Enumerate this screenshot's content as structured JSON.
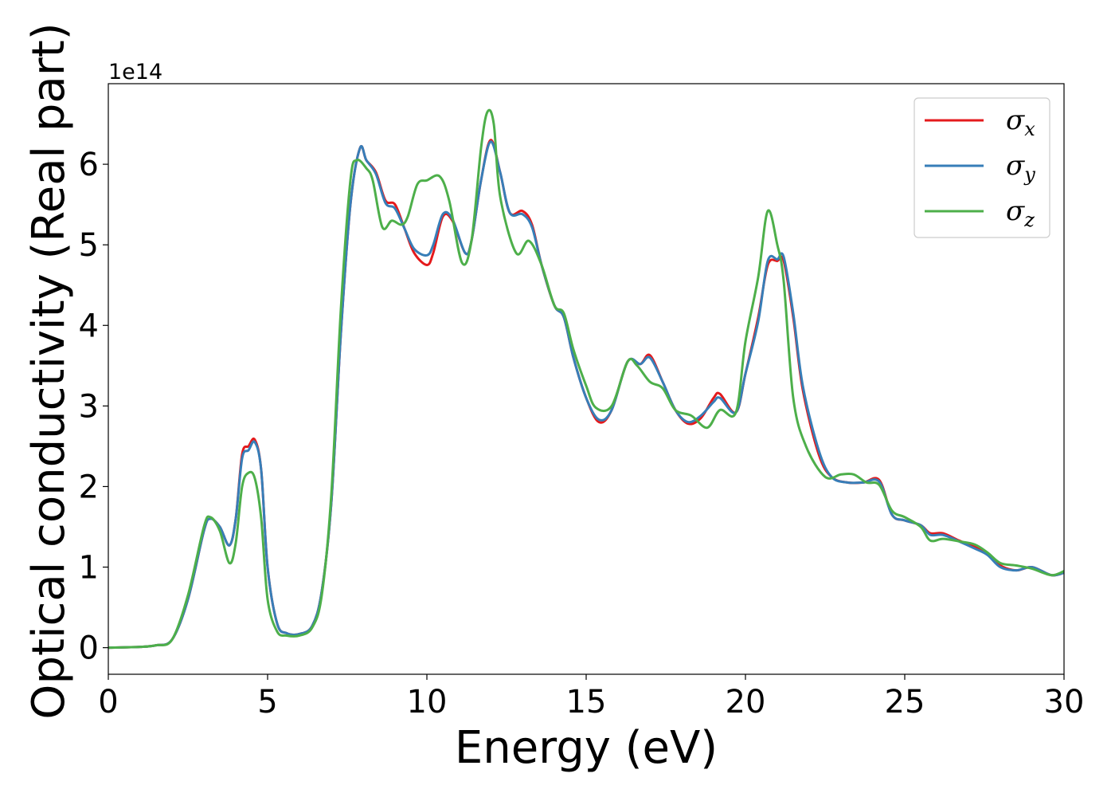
{
  "chart_data": {
    "type": "line",
    "xlabel": "Energy (eV)",
    "ylabel": "Optical conductivity (Real part)",
    "y_offset_label": "1e14",
    "xlim": [
      0,
      30
    ],
    "ylim": [
      -0.33,
      7.0
    ],
    "x_ticks": [
      0,
      5,
      10,
      15,
      20,
      25,
      30
    ],
    "y_ticks": [
      0,
      1,
      2,
      3,
      4,
      5,
      6
    ],
    "grid": false,
    "legend_position": "top-right",
    "series": [
      {
        "name": "σx",
        "symbol": "σ",
        "subscript": "x",
        "color": "#e41a1c",
        "points": [
          [
            0,
            0
          ],
          [
            1,
            0.01
          ],
          [
            1.5,
            0.03
          ],
          [
            2,
            0.1
          ],
          [
            2.5,
            0.6
          ],
          [
            3,
            1.45
          ],
          [
            3.2,
            1.6
          ],
          [
            3.5,
            1.5
          ],
          [
            3.8,
            1.27
          ],
          [
            4,
            1.6
          ],
          [
            4.2,
            2.4
          ],
          [
            4.4,
            2.5
          ],
          [
            4.6,
            2.58
          ],
          [
            4.8,
            2.2
          ],
          [
            5,
            1.0
          ],
          [
            5.3,
            0.3
          ],
          [
            5.6,
            0.18
          ],
          [
            6,
            0.17
          ],
          [
            6.4,
            0.27
          ],
          [
            6.7,
            0.7
          ],
          [
            7,
            1.8
          ],
          [
            7.3,
            3.9
          ],
          [
            7.6,
            5.5
          ],
          [
            7.9,
            6.2
          ],
          [
            8.1,
            6.05
          ],
          [
            8.4,
            5.9
          ],
          [
            8.7,
            5.55
          ],
          [
            9,
            5.5
          ],
          [
            9.3,
            5.2
          ],
          [
            9.6,
            4.9
          ],
          [
            10,
            4.75
          ],
          [
            10.2,
            4.9
          ],
          [
            10.5,
            5.35
          ],
          [
            10.8,
            5.3
          ],
          [
            11.2,
            4.9
          ],
          [
            11.4,
            5.05
          ],
          [
            11.7,
            5.8
          ],
          [
            12,
            6.3
          ],
          [
            12.3,
            5.9
          ],
          [
            12.6,
            5.4
          ],
          [
            13,
            5.42
          ],
          [
            13.3,
            5.25
          ],
          [
            13.6,
            4.75
          ],
          [
            14,
            4.25
          ],
          [
            14.3,
            4.1
          ],
          [
            14.6,
            3.6
          ],
          [
            15,
            3.1
          ],
          [
            15.4,
            2.8
          ],
          [
            15.8,
            2.95
          ],
          [
            16.3,
            3.55
          ],
          [
            16.7,
            3.52
          ],
          [
            17,
            3.63
          ],
          [
            17.4,
            3.3
          ],
          [
            17.8,
            2.95
          ],
          [
            18.2,
            2.78
          ],
          [
            18.6,
            2.85
          ],
          [
            19,
            3.1
          ],
          [
            19.2,
            3.15
          ],
          [
            19.7,
            2.92
          ],
          [
            20,
            3.4
          ],
          [
            20.4,
            4.1
          ],
          [
            20.7,
            4.75
          ],
          [
            21,
            4.8
          ],
          [
            21.2,
            4.8
          ],
          [
            21.5,
            4.1
          ],
          [
            21.8,
            3.2
          ],
          [
            22.3,
            2.4
          ],
          [
            22.7,
            2.12
          ],
          [
            23.2,
            2.05
          ],
          [
            23.7,
            2.05
          ],
          [
            24.2,
            2.08
          ],
          [
            24.6,
            1.65
          ],
          [
            25,
            1.58
          ],
          [
            25.5,
            1.52
          ],
          [
            25.8,
            1.42
          ],
          [
            26.2,
            1.42
          ],
          [
            26.7,
            1.33
          ],
          [
            27.2,
            1.25
          ],
          [
            27.6,
            1.17
          ],
          [
            28,
            1.02
          ],
          [
            28.5,
            0.96
          ],
          [
            29,
            1.0
          ],
          [
            29.6,
            0.9
          ],
          [
            30,
            0.93
          ]
        ]
      },
      {
        "name": "σy",
        "symbol": "σ",
        "subscript": "y",
        "color": "#377eb8",
        "points": [
          [
            0,
            0
          ],
          [
            1,
            0.01
          ],
          [
            1.5,
            0.03
          ],
          [
            2,
            0.1
          ],
          [
            2.5,
            0.6
          ],
          [
            3,
            1.45
          ],
          [
            3.2,
            1.6
          ],
          [
            3.5,
            1.5
          ],
          [
            3.8,
            1.27
          ],
          [
            4,
            1.6
          ],
          [
            4.2,
            2.35
          ],
          [
            4.4,
            2.45
          ],
          [
            4.6,
            2.55
          ],
          [
            4.8,
            2.2
          ],
          [
            5,
            1.0
          ],
          [
            5.3,
            0.3
          ],
          [
            5.6,
            0.18
          ],
          [
            6,
            0.17
          ],
          [
            6.4,
            0.27
          ],
          [
            6.7,
            0.7
          ],
          [
            7,
            1.8
          ],
          [
            7.3,
            3.9
          ],
          [
            7.6,
            5.5
          ],
          [
            7.9,
            6.2
          ],
          [
            8.1,
            6.05
          ],
          [
            8.4,
            5.88
          ],
          [
            8.7,
            5.52
          ],
          [
            9,
            5.45
          ],
          [
            9.3,
            5.2
          ],
          [
            9.6,
            4.95
          ],
          [
            10,
            4.87
          ],
          [
            10.2,
            5.0
          ],
          [
            10.5,
            5.38
          ],
          [
            10.8,
            5.32
          ],
          [
            11.2,
            4.9
          ],
          [
            11.4,
            5.05
          ],
          [
            11.7,
            5.8
          ],
          [
            12,
            6.28
          ],
          [
            12.3,
            5.9
          ],
          [
            12.6,
            5.4
          ],
          [
            13,
            5.38
          ],
          [
            13.3,
            5.22
          ],
          [
            13.6,
            4.75
          ],
          [
            14,
            4.25
          ],
          [
            14.3,
            4.1
          ],
          [
            14.6,
            3.6
          ],
          [
            15,
            3.1
          ],
          [
            15.4,
            2.83
          ],
          [
            15.8,
            2.95
          ],
          [
            16.3,
            3.55
          ],
          [
            16.7,
            3.52
          ],
          [
            17,
            3.6
          ],
          [
            17.4,
            3.3
          ],
          [
            17.8,
            2.95
          ],
          [
            18.2,
            2.8
          ],
          [
            18.6,
            2.88
          ],
          [
            19,
            3.05
          ],
          [
            19.2,
            3.1
          ],
          [
            19.7,
            2.92
          ],
          [
            20,
            3.4
          ],
          [
            20.4,
            4.05
          ],
          [
            20.7,
            4.8
          ],
          [
            21,
            4.82
          ],
          [
            21.2,
            4.85
          ],
          [
            21.5,
            4.15
          ],
          [
            21.8,
            3.25
          ],
          [
            22.3,
            2.45
          ],
          [
            22.7,
            2.12
          ],
          [
            23.2,
            2.05
          ],
          [
            23.7,
            2.05
          ],
          [
            24.2,
            2.06
          ],
          [
            24.6,
            1.65
          ],
          [
            25,
            1.58
          ],
          [
            25.5,
            1.52
          ],
          [
            25.8,
            1.4
          ],
          [
            26.2,
            1.4
          ],
          [
            26.7,
            1.32
          ],
          [
            27.2,
            1.23
          ],
          [
            27.6,
            1.15
          ],
          [
            28,
            1.0
          ],
          [
            28.5,
            0.96
          ],
          [
            29,
            1.0
          ],
          [
            29.6,
            0.9
          ],
          [
            30,
            0.93
          ]
        ]
      },
      {
        "name": "σz",
        "symbol": "σ",
        "subscript": "z",
        "color": "#4daf4a",
        "points": [
          [
            0,
            0
          ],
          [
            1,
            0.01
          ],
          [
            1.5,
            0.03
          ],
          [
            2,
            0.1
          ],
          [
            2.5,
            0.65
          ],
          [
            3,
            1.5
          ],
          [
            3.2,
            1.62
          ],
          [
            3.5,
            1.45
          ],
          [
            3.8,
            1.05
          ],
          [
            4,
            1.3
          ],
          [
            4.2,
            2.0
          ],
          [
            4.4,
            2.17
          ],
          [
            4.6,
            2.1
          ],
          [
            4.8,
            1.6
          ],
          [
            5,
            0.6
          ],
          [
            5.3,
            0.2
          ],
          [
            5.6,
            0.15
          ],
          [
            6,
            0.15
          ],
          [
            6.4,
            0.25
          ],
          [
            6.7,
            0.65
          ],
          [
            7,
            1.9
          ],
          [
            7.3,
            4.2
          ],
          [
            7.6,
            5.8
          ],
          [
            7.8,
            6.05
          ],
          [
            8.1,
            5.95
          ],
          [
            8.3,
            5.8
          ],
          [
            8.6,
            5.22
          ],
          [
            8.9,
            5.3
          ],
          [
            9.2,
            5.25
          ],
          [
            9.4,
            5.35
          ],
          [
            9.7,
            5.75
          ],
          [
            10,
            5.8
          ],
          [
            10.4,
            5.85
          ],
          [
            10.7,
            5.55
          ],
          [
            11.1,
            4.78
          ],
          [
            11.4,
            5.05
          ],
          [
            11.7,
            6.2
          ],
          [
            11.9,
            6.65
          ],
          [
            12.1,
            6.5
          ],
          [
            12.3,
            5.6
          ],
          [
            12.8,
            4.9
          ],
          [
            13.2,
            5.05
          ],
          [
            13.6,
            4.75
          ],
          [
            14,
            4.25
          ],
          [
            14.3,
            4.15
          ],
          [
            14.6,
            3.7
          ],
          [
            15,
            3.25
          ],
          [
            15.3,
            2.98
          ],
          [
            15.8,
            3.0
          ],
          [
            16.3,
            3.55
          ],
          [
            16.6,
            3.5
          ],
          [
            17,
            3.3
          ],
          [
            17.4,
            3.22
          ],
          [
            17.8,
            2.95
          ],
          [
            18.3,
            2.88
          ],
          [
            18.8,
            2.73
          ],
          [
            19.2,
            2.95
          ],
          [
            19.7,
            2.92
          ],
          [
            20,
            3.8
          ],
          [
            20.4,
            4.6
          ],
          [
            20.7,
            5.42
          ],
          [
            21,
            5.0
          ],
          [
            21.2,
            4.55
          ],
          [
            21.5,
            3.1
          ],
          [
            21.9,
            2.5
          ],
          [
            22.5,
            2.12
          ],
          [
            23,
            2.15
          ],
          [
            23.4,
            2.15
          ],
          [
            23.8,
            2.05
          ],
          [
            24.2,
            2.02
          ],
          [
            24.6,
            1.7
          ],
          [
            25,
            1.62
          ],
          [
            25.5,
            1.5
          ],
          [
            25.8,
            1.33
          ],
          [
            26.2,
            1.35
          ],
          [
            26.7,
            1.32
          ],
          [
            27.2,
            1.28
          ],
          [
            27.6,
            1.18
          ],
          [
            28,
            1.05
          ],
          [
            28.5,
            1.02
          ],
          [
            29,
            0.98
          ],
          [
            29.6,
            0.9
          ],
          [
            30,
            0.95
          ]
        ]
      }
    ]
  }
}
